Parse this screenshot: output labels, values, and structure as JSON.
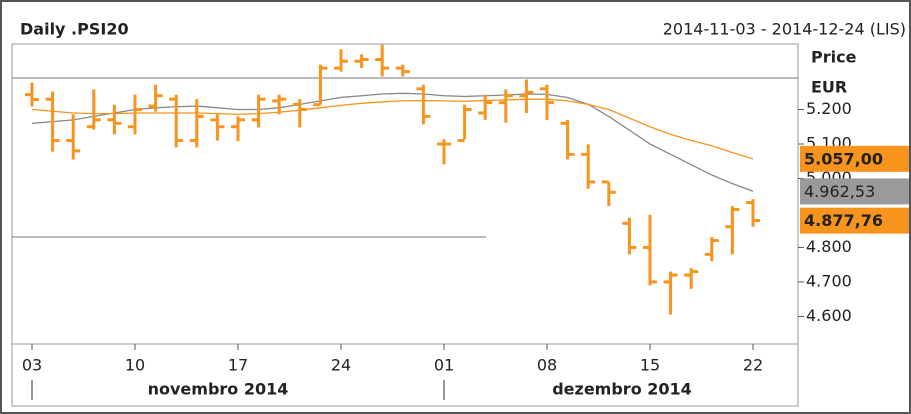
{
  "chart_data": {
    "type": "ohlc",
    "title": "Daily .PSI20",
    "subtitle": "2014-11-03 - 2014-12-24 (LIS)",
    "y_label": "Price",
    "y_unit": "EUR",
    "categories": [
      "03",
      null,
      null,
      null,
      null,
      "10",
      null,
      null,
      null,
      null,
      "17",
      null,
      null,
      null,
      null,
      "24",
      null,
      null,
      null,
      null,
      "01",
      null,
      null,
      null,
      null,
      "08",
      null,
      null,
      null,
      null,
      "15",
      null,
      null,
      null,
      null,
      "22"
    ],
    "months": [
      "novembro 2014",
      "dezembro 2014"
    ],
    "color": "#f7941d",
    "open": [
      5243,
      5230,
      5110,
      5150,
      5170,
      5150,
      5210,
      5230,
      5110,
      5170,
      5150,
      5170,
      5225,
      5215,
      5214,
      5320,
      5340,
      5345,
      5320,
      5260,
      5100,
      5110,
      5190,
      5220,
      5240,
      5260,
      5160,
      5070,
      4990,
      4870,
      4800,
      4700,
      4720,
      4780,
      4860,
      4930
    ],
    "high": [
      5278,
      5252,
      5186,
      5258,
      5214,
      5243,
      5272,
      5243,
      5230,
      5186,
      5180,
      5243,
      5243,
      5230,
      5330,
      5375,
      5360,
      5388,
      5330,
      5272,
      5114,
      5214,
      5243,
      5258,
      5287,
      5272,
      5170,
      5099,
      4990,
      4886,
      4895,
      4730,
      4740,
      4830,
      4920,
      4940
    ],
    "low": [
      5209,
      5078,
      5055,
      5142,
      5128,
      5128,
      5194,
      5090,
      5090,
      5110,
      5108,
      5148,
      5186,
      5148,
      5214,
      5310,
      5320,
      5296,
      5296,
      5157,
      5041,
      5114,
      5170,
      5162,
      5190,
      5170,
      5055,
      4970,
      4920,
      4780,
      4690,
      4605,
      4680,
      4760,
      4780,
      4860
    ],
    "close": [
      5229,
      5110,
      5080,
      5170,
      5160,
      5200,
      5240,
      5110,
      5180,
      5150,
      5170,
      5230,
      5230,
      5200,
      5320,
      5340,
      5345,
      5320,
      5310,
      5180,
      5100,
      5200,
      5220,
      5240,
      5250,
      5220,
      5070,
      4990,
      4960,
      4800,
      4700,
      4720,
      4730,
      4820,
      4910,
      4878
    ],
    "lines": [
      {
        "color": "#888888",
        "values": [
          5160,
          5165,
          5170,
          5180,
          5190,
          5200,
          5205,
          5208,
          5210,
          5205,
          5200,
          5200,
          5205,
          5215,
          5225,
          5235,
          5240,
          5245,
          5247,
          5245,
          5240,
          5238,
          5240,
          5242,
          5245,
          5244,
          5235,
          5215,
          5180,
          5140,
          5100,
          5070,
          5040,
          5010,
          4985,
          4963
        ]
      },
      {
        "color": "#f7941d",
        "values": [
          5200,
          5195,
          5190,
          5188,
          5188,
          5190,
          5190,
          5190,
          5190,
          5188,
          5186,
          5188,
          5192,
          5198,
          5205,
          5212,
          5218,
          5222,
          5225,
          5226,
          5225,
          5224,
          5226,
          5228,
          5230,
          5230,
          5225,
          5215,
          5200,
          5175,
          5150,
          5128,
          5110,
          5095,
          5075,
          5057
        ]
      }
    ],
    "markers": [
      {
        "value": 5057,
        "label": "5.057,00",
        "color": "#f7941d"
      },
      {
        "value": 4962.53,
        "label": "4.962,53",
        "color": "#9a9a9a"
      },
      {
        "value": 4877.76,
        "label": "4.877,76",
        "color": "#f7941d"
      }
    ],
    "ylim": [
      4520,
      5390
    ],
    "yticks": [
      {
        "value": 5200,
        "label": "5.200"
      },
      {
        "value": 5100,
        "label": "5.100"
      },
      {
        "value": 5000,
        "label": "5.000"
      },
      {
        "value": 4800,
        "label": "4.800"
      },
      {
        "value": 4700,
        "label": "4.700"
      },
      {
        "value": 4600,
        "label": "4.600"
      }
    ]
  }
}
